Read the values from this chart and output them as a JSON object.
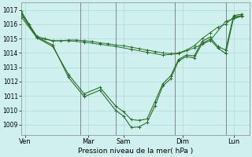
{
  "bg_color": "#d0f0f0",
  "grid_color": "#b0d8d8",
  "line_color": "#2a6e2a",
  "marker_color": "#2a6e2a",
  "ylabel_ticks": [
    1009,
    1010,
    1011,
    1012,
    1013,
    1014,
    1015,
    1016,
    1017
  ],
  "ylim": [
    1008.3,
    1017.5
  ],
  "xlim": [
    0,
    29
  ],
  "x_day_labels": [
    "Ven",
    "Mar",
    "Sam",
    "Dim",
    "Lun"
  ],
  "x_day_positions": [
    0.5,
    8.5,
    13.0,
    20.5,
    27.0
  ],
  "x_vlines": [
    7.5,
    12.0,
    19.5,
    26.0
  ],
  "xlabel": "Pression niveau de la mer( hPa )",
  "series1_x": [
    0,
    1,
    2,
    3,
    4,
    5,
    6,
    7,
    8,
    9,
    10,
    11,
    12,
    13,
    14,
    15,
    16,
    17,
    18,
    19,
    20,
    21,
    22,
    23,
    24,
    25,
    26,
    27,
    28
  ],
  "series1_y": [
    1016.9,
    1016.0,
    1015.15,
    1015.0,
    1014.85,
    1014.85,
    1014.9,
    1014.9,
    1014.85,
    1014.8,
    1014.7,
    1014.65,
    1014.55,
    1014.5,
    1014.4,
    1014.3,
    1014.2,
    1014.1,
    1014.0,
    1013.95,
    1014.0,
    1014.2,
    1014.5,
    1015.0,
    1015.4,
    1015.8,
    1016.0,
    1016.5,
    1016.6
  ],
  "series2_x": [
    0,
    2,
    4,
    6,
    8,
    10,
    12,
    14,
    16,
    18,
    20,
    22,
    24,
    26,
    28
  ],
  "series2_y": [
    1016.5,
    1015.05,
    1014.85,
    1014.85,
    1014.75,
    1014.6,
    1014.45,
    1014.25,
    1014.05,
    1013.85,
    1013.95,
    1014.35,
    1014.85,
    1016.2,
    1016.55
  ],
  "series3_x": [
    0,
    2,
    4,
    6,
    8,
    10,
    12,
    13,
    14,
    15,
    16,
    17,
    18,
    19,
    20,
    21,
    22,
    23,
    24,
    25,
    26,
    27,
    28
  ],
  "series3_y": [
    1016.7,
    1015.05,
    1014.45,
    1012.5,
    1011.15,
    1011.6,
    1010.3,
    1009.9,
    1009.35,
    1009.3,
    1009.4,
    1010.6,
    1011.85,
    1012.4,
    1013.55,
    1013.85,
    1013.8,
    1014.8,
    1015.1,
    1014.45,
    1014.2,
    1016.6,
    1016.7
  ],
  "series4_x": [
    0,
    2,
    4,
    6,
    8,
    10,
    12,
    13,
    14,
    15,
    16,
    17,
    18,
    19,
    20,
    21,
    22,
    23,
    24,
    25,
    26,
    27,
    28
  ],
  "series4_y": [
    1016.8,
    1015.1,
    1014.55,
    1012.3,
    1010.95,
    1011.4,
    1010.0,
    1009.6,
    1008.8,
    1008.85,
    1009.15,
    1010.3,
    1011.7,
    1012.2,
    1013.45,
    1013.75,
    1013.65,
    1014.65,
    1014.95,
    1014.35,
    1013.95,
    1016.45,
    1016.6
  ]
}
